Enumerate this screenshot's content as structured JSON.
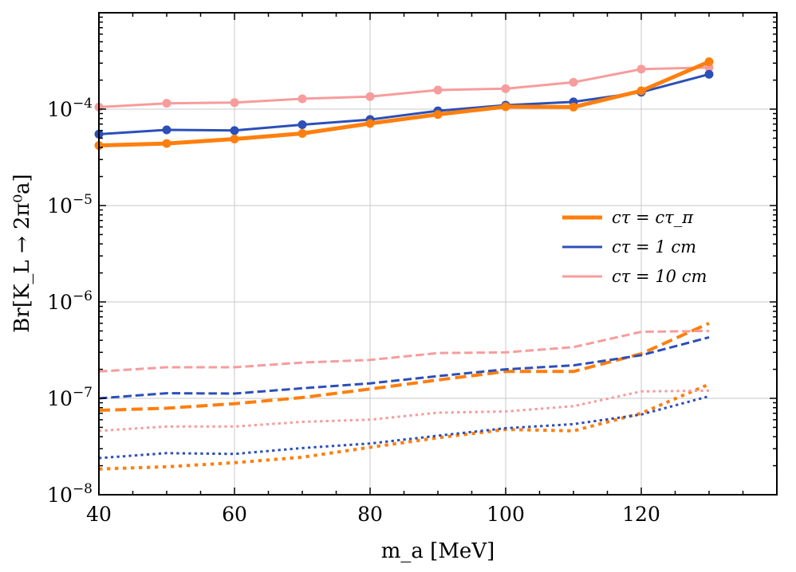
{
  "chart_data": {
    "type": "line",
    "xlabel": "m_a [MeV]",
    "ylabel": "Br[K_L → 2π⁰a]",
    "xlim": [
      40,
      140
    ],
    "ylim": [
      1e-08,
      0.001
    ],
    "yscale": "log",
    "x_ticks": [
      40,
      60,
      80,
      100,
      120
    ],
    "x_tick_labels": [
      "40",
      "60",
      "80",
      "100",
      "120"
    ],
    "y_ticks": [
      1e-08,
      1e-07,
      1e-06,
      1e-05,
      0.0001
    ],
    "y_tick_labels": [
      {
        "base": "10",
        "exp": "−8"
      },
      {
        "base": "10",
        "exp": "−7"
      },
      {
        "base": "10",
        "exp": "−6"
      },
      {
        "base": "10",
        "exp": "−5"
      },
      {
        "base": "10",
        "exp": "−4"
      }
    ],
    "grid": true,
    "legend_position": "right-middle",
    "legend": [
      {
        "label": "cτ = cτ_π",
        "color": "#ff7f0e",
        "width": 5
      },
      {
        "label": "cτ = 1 cm",
        "color": "#2c4fb8",
        "width": 3
      },
      {
        "label": "cτ = 10 cm",
        "color": "#f79c9c",
        "width": 3
      }
    ],
    "series": [
      {
        "name": "cτ = cτ_π",
        "color": "#ff7f0e",
        "style": "solid",
        "width": 5,
        "markers": true,
        "x": [
          40,
          50,
          60,
          70,
          80,
          90,
          100,
          110,
          120,
          130
        ],
        "y": [
          4.2e-05,
          4.4e-05,
          4.9e-05,
          5.6e-05,
          7.1e-05,
          8.8e-05,
          0.000106,
          0.000105,
          0.000155,
          0.00031
        ]
      },
      {
        "name": "cτ = 1 cm",
        "color": "#2c4fb8",
        "style": "solid",
        "width": 3,
        "markers": true,
        "x": [
          40,
          50,
          60,
          70,
          80,
          90,
          100,
          110,
          120,
          130
        ],
        "y": [
          5.5e-05,
          6.1e-05,
          6e-05,
          6.9e-05,
          7.8e-05,
          9.6e-05,
          0.00011,
          0.000119,
          0.00015,
          0.00023
        ]
      },
      {
        "name": "cτ = 10 cm",
        "color": "#f79c9c",
        "style": "solid",
        "width": 3,
        "markers": true,
        "x": [
          40,
          50,
          60,
          70,
          80,
          90,
          100,
          110,
          120,
          130
        ],
        "y": [
          0.000105,
          0.000115,
          0.000117,
          0.000128,
          0.000135,
          0.000158,
          0.000163,
          0.00019,
          0.00026,
          0.00027
        ]
      },
      {
        "color": "#ff7f0e",
        "style": "dashed",
        "width": 4,
        "x": [
          40,
          50,
          60,
          70,
          80,
          90,
          100,
          110,
          120,
          130
        ],
        "y": [
          7.5e-08,
          7.9e-08,
          8.8e-08,
          1.02e-07,
          1.25e-07,
          1.55e-07,
          1.9e-07,
          1.9e-07,
          2.9e-07,
          6e-07
        ]
      },
      {
        "color": "#2c4fb8",
        "style": "dashed",
        "width": 3,
        "x": [
          40,
          50,
          60,
          70,
          80,
          90,
          100,
          110,
          120,
          130
        ],
        "y": [
          1e-07,
          1.13e-07,
          1.12e-07,
          1.27e-07,
          1.43e-07,
          1.7e-07,
          2e-07,
          2.2e-07,
          2.8e-07,
          4.3e-07
        ]
      },
      {
        "color": "#f79c9c",
        "style": "dashed",
        "width": 3,
        "x": [
          40,
          50,
          60,
          70,
          80,
          90,
          100,
          110,
          120,
          130
        ],
        "y": [
          1.9e-07,
          2.1e-07,
          2.1e-07,
          2.35e-07,
          2.5e-07,
          2.95e-07,
          3e-07,
          3.4e-07,
          4.9e-07,
          5e-07
        ]
      },
      {
        "color": "#ff7f0e",
        "style": "dotted",
        "width": 4,
        "x": [
          40,
          50,
          60,
          70,
          80,
          90,
          100,
          110,
          120,
          130
        ],
        "y": [
          1.85e-08,
          1.95e-08,
          2.15e-08,
          2.45e-08,
          3.1e-08,
          3.9e-08,
          4.75e-08,
          4.6e-08,
          7e-08,
          1.4e-07
        ]
      },
      {
        "color": "#2c4fb8",
        "style": "dotted",
        "width": 3,
        "x": [
          40,
          50,
          60,
          70,
          80,
          90,
          100,
          110,
          120,
          130
        ],
        "y": [
          2.4e-08,
          2.7e-08,
          2.65e-08,
          3.05e-08,
          3.4e-08,
          4.1e-08,
          4.9e-08,
          5.4e-08,
          6.8e-08,
          1.05e-07
        ]
      },
      {
        "color": "#f79c9c",
        "style": "dotted",
        "width": 3,
        "x": [
          40,
          50,
          60,
          70,
          80,
          90,
          100,
          110,
          120,
          130
        ],
        "y": [
          4.6e-08,
          5.1e-08,
          5.1e-08,
          5.7e-08,
          6e-08,
          7.1e-08,
          7.3e-08,
          8.3e-08,
          1.18e-07,
          1.2e-07
        ]
      }
    ]
  }
}
